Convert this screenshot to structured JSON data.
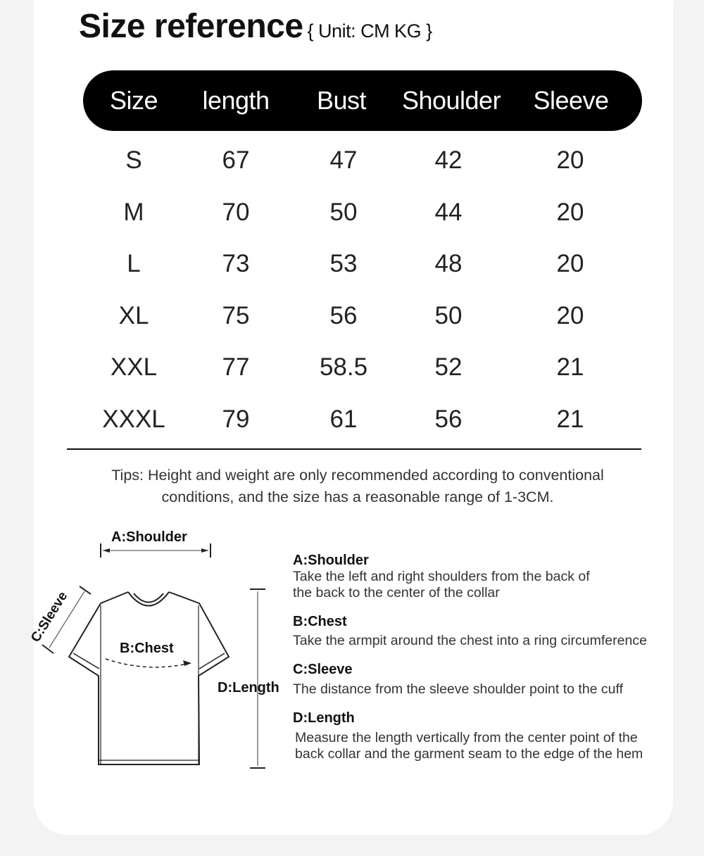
{
  "title": "Size reference",
  "unit": "{ Unit: CM KG }",
  "table": {
    "headers": [
      "Size",
      "length",
      "Bust",
      "Shoulder",
      "Sleeve"
    ],
    "rows": [
      [
        "S",
        "67",
        "47",
        "42",
        "20"
      ],
      [
        "M",
        "70",
        "50",
        "44",
        "20"
      ],
      [
        "L",
        "73",
        "53",
        "48",
        "20"
      ],
      [
        "XL",
        "75",
        "56",
        "50",
        "20"
      ],
      [
        "XXL",
        "77",
        "58.5",
        "52",
        "21"
      ],
      [
        "XXXL",
        "79",
        "61",
        "56",
        "21"
      ]
    ]
  },
  "tips": {
    "line1": "Tips: Height and weight are only recommended according to conventional",
    "line2": "conditions, and the size has a reasonable range of 1-3CM."
  },
  "diagram": {
    "a": "A:Shoulder",
    "b": "B:Chest",
    "c": "C:Sleeve",
    "d": "D:Length"
  },
  "descriptions": [
    {
      "title": "A:Shoulder",
      "lines": [
        "Take the left and right shoulders from the back of",
        "the back to the center of the collar"
      ]
    },
    {
      "title": "B:Chest",
      "lines": [
        "Take the armpit around the chest into a ring circumference"
      ]
    },
    {
      "title": "C:Sleeve",
      "lines": [
        "The distance from the sleeve shoulder point to the cuff"
      ]
    },
    {
      "title": "D:Length",
      "lines": [
        "Measure the length vertically from the center point of the",
        "back collar and the garment seam to the edge of the hem"
      ]
    }
  ]
}
